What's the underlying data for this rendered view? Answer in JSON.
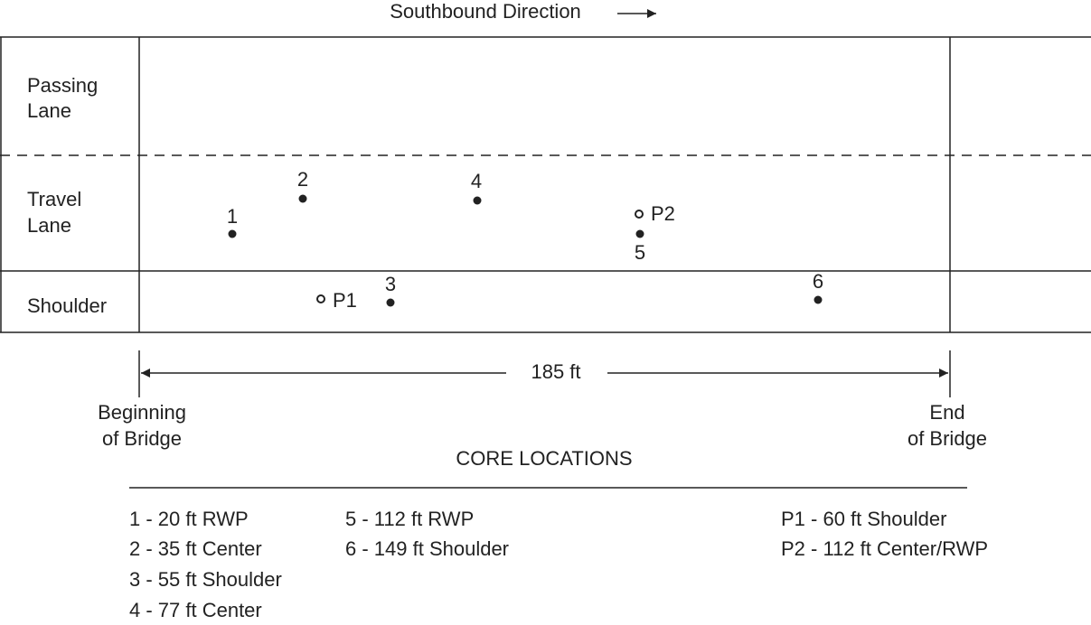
{
  "header": {
    "title": "Southbound Direction"
  },
  "lanes": [
    {
      "label": [
        "Passing",
        "Lane"
      ]
    },
    {
      "label": [
        "Travel",
        "Lane"
      ]
    },
    {
      "label": [
        "Shoulder"
      ]
    }
  ],
  "points": [
    {
      "label": "1"
    },
    {
      "label": "2"
    },
    {
      "label": "3"
    },
    {
      "label": "4"
    },
    {
      "label": "5"
    },
    {
      "label": "6"
    },
    {
      "label": "P1"
    },
    {
      "label": "P2"
    }
  ],
  "dimension": {
    "label": "185 ft",
    "start": [
      "Beginning",
      "of Bridge"
    ],
    "end": [
      "End",
      "of Bridge"
    ]
  },
  "legend": {
    "title": "CORE LOCATIONS",
    "columns": [
      [
        "1 - 20 ft RWP",
        "2 - 35 ft Center",
        "3 - 55 ft Shoulder",
        "4 - 77 ft Center"
      ],
      [
        "5 - 112 ft RWP",
        "6 - 149 ft Shoulder"
      ],
      [
        "P1 - 60 ft Shoulder",
        "P2 - 112 ft Center/RWP"
      ]
    ]
  }
}
